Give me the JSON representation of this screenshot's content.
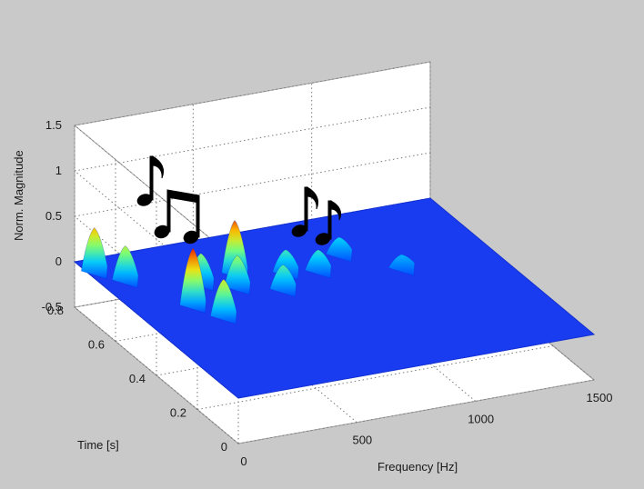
{
  "chart_data": {
    "type": "surface",
    "title": "",
    "xlabel": "Frequency [Hz]",
    "ylabel": "Time [s]",
    "zlabel": "Norm. Magnitude",
    "xlim": [
      0,
      1500
    ],
    "ylim": [
      0,
      0.8
    ],
    "zlim": [
      -0.5,
      1.5
    ],
    "x_ticks": [
      "0",
      "500",
      "1000",
      "1500"
    ],
    "y_ticks": [
      "0",
      "0.2",
      "0.4",
      "0.6",
      "0.8"
    ],
    "z_ticks": [
      "-0.5",
      "0",
      "0.5",
      "1",
      "1.5"
    ],
    "grid": true,
    "colormap": "jet",
    "baseline": 0,
    "peaks": [
      {
        "freq": 40,
        "time": 0.75,
        "height": 0.45
      },
      {
        "freq": 110,
        "time": 0.68,
        "height": 0.35
      },
      {
        "freq": 240,
        "time": 0.5,
        "height": 0.6
      },
      {
        "freq": 300,
        "time": 0.42,
        "height": 0.38
      },
      {
        "freq": 360,
        "time": 0.6,
        "height": 0.3
      },
      {
        "freq": 520,
        "time": 0.62,
        "height": 0.55
      },
      {
        "freq": 470,
        "time": 0.55,
        "height": 0.32
      },
      {
        "freq": 620,
        "time": 0.5,
        "height": 0.24
      },
      {
        "freq": 700,
        "time": 0.58,
        "height": 0.22
      },
      {
        "freq": 820,
        "time": 0.56,
        "height": 0.2
      },
      {
        "freq": 960,
        "time": 0.62,
        "height": 0.16
      },
      {
        "freq": 1120,
        "time": 0.5,
        "height": 0.12
      }
    ],
    "annotation_icons": [
      "music-note-icon",
      "beamed-notes-icon",
      "music-note-icon",
      "music-note-icon"
    ]
  }
}
